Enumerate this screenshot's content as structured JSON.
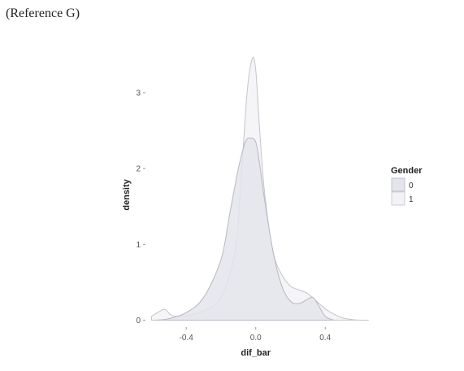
{
  "caption": "(Reference G)",
  "chart_data": {
    "type": "area",
    "title": "",
    "xlabel": "dif_bar",
    "ylabel": "density",
    "xlim": [
      -0.63,
      0.67
    ],
    "ylim": [
      -0.08,
      3.6
    ],
    "x_ticks": [
      -0.4,
      0.0,
      0.4
    ],
    "x_tick_labels": [
      "-0.4",
      "0.0",
      "0.4"
    ],
    "y_ticks": [
      0,
      1,
      2,
      3
    ],
    "y_tick_labels": [
      "0",
      "1",
      "2",
      "3"
    ],
    "grid": false,
    "legend": {
      "title": "Gender",
      "position": "right"
    },
    "series": [
      {
        "name": "0",
        "fill": "#e4e4ec",
        "stroke": "#b8b8c4",
        "x": [
          -0.58,
          -0.5,
          -0.4,
          -0.3,
          -0.2,
          -0.15,
          -0.1,
          -0.06,
          -0.03,
          0.0,
          0.02,
          0.05,
          0.1,
          0.15,
          0.2,
          0.25,
          0.3,
          0.33,
          0.36,
          0.4,
          0.45
        ],
        "y": [
          0.0,
          0.02,
          0.1,
          0.3,
          0.8,
          1.4,
          2.0,
          2.35,
          2.4,
          2.35,
          2.1,
          1.6,
          0.9,
          0.45,
          0.25,
          0.22,
          0.28,
          0.3,
          0.2,
          0.05,
          0.0
        ]
      },
      {
        "name": "1",
        "fill": "#f3f3f6",
        "stroke": "#c4c4cc",
        "x": [
          -0.6,
          -0.55,
          -0.52,
          -0.48,
          -0.4,
          -0.3,
          -0.2,
          -0.12,
          -0.08,
          -0.05,
          -0.02,
          0.0,
          0.02,
          0.05,
          0.1,
          0.15,
          0.2,
          0.25,
          0.3,
          0.35,
          0.4,
          0.45,
          0.5,
          0.55,
          0.6,
          0.65
        ],
        "y": [
          0.05,
          0.12,
          0.14,
          0.06,
          0.06,
          0.12,
          0.3,
          0.9,
          2.0,
          3.0,
          3.45,
          3.3,
          2.6,
          1.7,
          0.9,
          0.6,
          0.45,
          0.4,
          0.35,
          0.25,
          0.15,
          0.08,
          0.03,
          0.01,
          0.0,
          0.0
        ]
      }
    ]
  }
}
